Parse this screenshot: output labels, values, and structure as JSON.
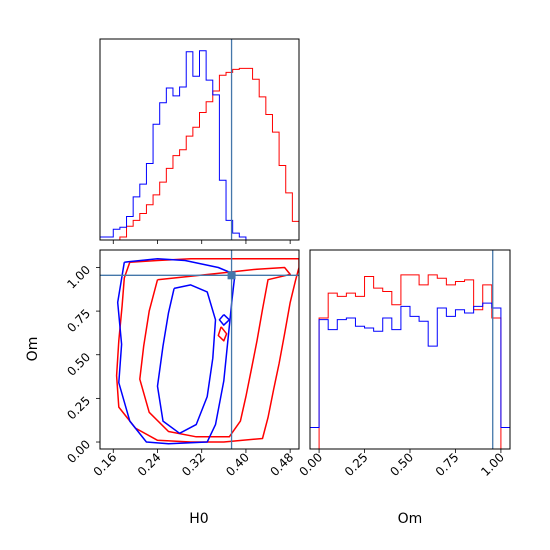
{
  "chart_data": {
    "type": "corner",
    "parameters": [
      "H0",
      "Om"
    ],
    "truths": {
      "H0": 0.374,
      "Om": 0.955
    },
    "truth_color": "#4477aa",
    "series_colors": {
      "red": "#ff0000",
      "blue": "#0000ff"
    },
    "grid": false,
    "panels": [
      {
        "id": "hist-H0",
        "type": "histogram",
        "parameter": "H0",
        "xlim": [
          0.136,
          0.496
        ],
        "bin_edges": [
          0.136,
          0.148,
          0.16,
          0.172,
          0.184,
          0.196,
          0.208,
          0.22,
          0.232,
          0.244,
          0.256,
          0.268,
          0.28,
          0.292,
          0.304,
          0.316,
          0.328,
          0.34,
          0.352,
          0.364,
          0.376,
          0.388,
          0.4,
          0.412,
          0.424,
          0.436,
          0.448,
          0.46,
          0.472,
          0.484,
          0.496
        ],
        "series": [
          {
            "color": "red",
            "counts": [
              0,
              0,
              0,
              0.3,
              1.4,
              2.0,
              2.7,
              3.6,
              4.6,
              5.9,
              7.3,
              8.6,
              9.2,
              10.6,
              11.5,
              13.0,
              14.1,
              15.2,
              16.8,
              17.1,
              17.4,
              17.5,
              17.5,
              16.4,
              14.6,
              12.8,
              11.0,
              7.6,
              4.8,
              1.9
            ]
          },
          {
            "color": "blue",
            "counts": [
              0.3,
              0.3,
              1.1,
              1.3,
              2.4,
              4.4,
              5.7,
              7.8,
              11.8,
              14.0,
              15.5,
              14.7,
              15.6,
              19.2,
              16.7,
              19.3,
              16.3,
              14.8,
              6.1,
              2.0,
              0.7,
              0.3,
              0,
              0,
              0,
              0,
              0,
              0,
              0,
              0
            ]
          }
        ]
      },
      {
        "id": "contour-H0-Om",
        "type": "contour",
        "x_parameter": "H0",
        "y_parameter": "Om",
        "xlim": [
          0.136,
          0.496
        ],
        "ylim": [
          -0.04,
          1.1
        ],
        "x_ticks": [
          "0.16",
          "0.24",
          "0.32",
          "0.40",
          "0.48"
        ],
        "x_tick_values": [
          0.16,
          0.24,
          0.32,
          0.4,
          0.48
        ],
        "y_ticks": [
          "0.00",
          "0.25",
          "0.50",
          "0.75",
          "1.00"
        ],
        "y_tick_values": [
          0,
          0.25,
          0.5,
          0.75,
          1.0
        ],
        "xlabel": "H0",
        "ylabel": "Om",
        "contours": [
          {
            "color": "red",
            "level": "outer",
            "points": [
              [
                0.19,
                1.03
              ],
              [
                0.24,
                1.04
              ],
              [
                0.3,
                1.05
              ],
              [
                0.36,
                1.05
              ],
              [
                0.42,
                1.05
              ],
              [
                0.47,
                1.05
              ],
              [
                0.496,
                1.05
              ],
              [
                0.496,
                1.0
              ],
              [
                0.49,
                0.93
              ],
              [
                0.48,
                0.8
              ],
              [
                0.47,
                0.62
              ],
              [
                0.46,
                0.45
              ],
              [
                0.45,
                0.3
              ],
              [
                0.44,
                0.14
              ],
              [
                0.43,
                0.02
              ],
              [
                0.36,
                0.0
              ],
              [
                0.3,
                0.0
              ],
              [
                0.24,
                0.01
              ],
              [
                0.2,
                0.08
              ],
              [
                0.17,
                0.2
              ],
              [
                0.166,
                0.38
              ],
              [
                0.17,
                0.58
              ],
              [
                0.176,
                0.78
              ],
              [
                0.18,
                0.94
              ],
              [
                0.19,
                1.03
              ]
            ]
          },
          {
            "color": "red",
            "level": "inner",
            "points": [
              [
                0.24,
                0.93
              ],
              [
                0.3,
                0.95
              ],
              [
                0.36,
                0.97
              ],
              [
                0.42,
                0.99
              ],
              [
                0.47,
                1.0
              ],
              [
                0.48,
                0.96
              ],
              [
                0.44,
                0.93
              ],
              [
                0.43,
                0.76
              ],
              [
                0.42,
                0.58
              ],
              [
                0.41,
                0.42
              ],
              [
                0.4,
                0.26
              ],
              [
                0.39,
                0.12
              ],
              [
                0.37,
                0.03
              ],
              [
                0.31,
                0.03
              ],
              [
                0.26,
                0.06
              ],
              [
                0.225,
                0.17
              ],
              [
                0.208,
                0.36
              ],
              [
                0.215,
                0.55
              ],
              [
                0.225,
                0.75
              ],
              [
                0.24,
                0.93
              ]
            ]
          },
          {
            "color": "blue",
            "level": "outer",
            "points": [
              [
                0.18,
                1.03
              ],
              [
                0.24,
                1.05
              ],
              [
                0.29,
                1.04
              ],
              [
                0.35,
                1.0
              ],
              [
                0.38,
                0.96
              ],
              [
                0.375,
                0.82
              ],
              [
                0.368,
                0.6
              ],
              [
                0.36,
                0.35
              ],
              [
                0.345,
                0.1
              ],
              [
                0.33,
                0.0
              ],
              [
                0.26,
                -0.01
              ],
              [
                0.22,
                0.0
              ],
              [
                0.19,
                0.12
              ],
              [
                0.17,
                0.34
              ],
              [
                0.175,
                0.56
              ],
              [
                0.168,
                0.8
              ],
              [
                0.18,
                1.03
              ]
            ]
          },
          {
            "color": "blue",
            "level": "inner",
            "points": [
              [
                0.27,
                0.88
              ],
              [
                0.3,
                0.9
              ],
              [
                0.33,
                0.86
              ],
              [
                0.345,
                0.7
              ],
              [
                0.34,
                0.48
              ],
              [
                0.33,
                0.26
              ],
              [
                0.31,
                0.1
              ],
              [
                0.28,
                0.05
              ],
              [
                0.25,
                0.12
              ],
              [
                0.24,
                0.32
              ],
              [
                0.25,
                0.55
              ],
              [
                0.26,
                0.74
              ],
              [
                0.27,
                0.88
              ]
            ]
          },
          {
            "color": "red",
            "level": "island",
            "points": [
              [
                0.355,
                0.66
              ],
              [
                0.365,
                0.62
              ],
              [
                0.36,
                0.58
              ],
              [
                0.35,
                0.61
              ],
              [
                0.355,
                0.66
              ]
            ]
          },
          {
            "color": "blue",
            "level": "island",
            "points": [
              [
                0.36,
                0.73
              ],
              [
                0.37,
                0.7
              ],
              [
                0.36,
                0.67
              ],
              [
                0.352,
                0.7
              ],
              [
                0.36,
                0.73
              ]
            ]
          }
        ]
      },
      {
        "id": "hist-Om",
        "type": "histogram",
        "parameter": "Om",
        "xlim": [
          -0.05,
          1.05
        ],
        "ylim": [
          0,
          1.2
        ],
        "x_ticks": [
          "0.00",
          "0.25",
          "0.50",
          "0.75",
          "1.00"
        ],
        "x_tick_values": [
          0,
          0.25,
          0.5,
          0.75,
          1.0
        ],
        "xlabel": "Om",
        "bin_edges": [
          -0.05,
          0.0,
          0.05,
          0.1,
          0.15,
          0.2,
          0.25,
          0.3,
          0.35,
          0.4,
          0.45,
          0.5,
          0.55,
          0.6,
          0.65,
          0.7,
          0.75,
          0.8,
          0.85,
          0.9,
          0.95,
          1.0,
          1.05
        ],
        "series": [
          {
            "color": "red",
            "counts": [
              0,
              0.79,
              0.94,
              0.92,
              0.94,
              0.92,
              1.04,
              0.97,
              0.95,
              0.87,
              1.05,
              1.05,
              0.99,
              1.05,
              1.03,
              0.99,
              1.01,
              1.02,
              0.84,
              0.99,
              0.79,
              0
            ]
          },
          {
            "color": "blue",
            "counts": [
              0.13,
              0.78,
              0.72,
              0.78,
              0.79,
              0.74,
              0.73,
              0.71,
              0.79,
              0.72,
              0.86,
              0.8,
              0.77,
              0.62,
              0.85,
              0.8,
              0.84,
              0.82,
              0.86,
              0.88,
              0.85,
              0.13
            ]
          }
        ]
      }
    ]
  }
}
